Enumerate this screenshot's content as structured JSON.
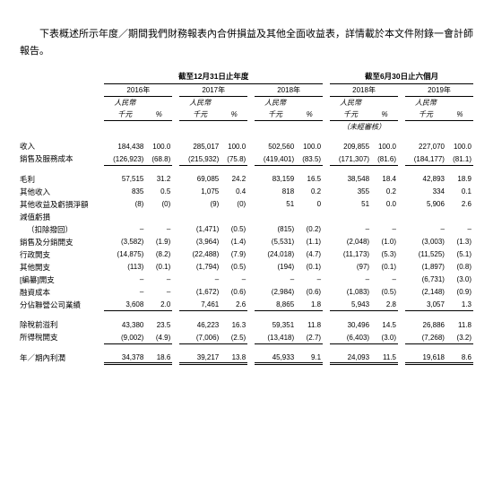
{
  "intro": "下表概述所示年度／期間我們財務報表內合併損益及其他全面收益表，詳情載於本文件附錄一會計師報告。",
  "group1": "截至12月31日止年度",
  "group2": "截至6月30日止六個月",
  "years": [
    "2016年",
    "2017年",
    "2018年",
    "2018年",
    "2019年"
  ],
  "unit_rmb": "人民幣",
  "unit_k": "千元",
  "pct": "%",
  "unaudited": "（未經審核）",
  "labels": {
    "revenue": "收入",
    "cogs": "銷售及服務成本",
    "gross": "毛利",
    "other_income": "其他收入",
    "other_gain": "其他收益及虧損淨額",
    "impair": "減值虧損",
    "impair2": "（扣除撥回）",
    "selling": "銷售及分銷開支",
    "admin": "行政開支",
    "other_exp": "其他開支",
    "redact_exp": "[編纂]開支",
    "finance": "融資成本",
    "assoc": "分佔聯營公司業績",
    "pbt": "除稅前溢利",
    "tax": "所得稅開支",
    "net": "年／期內利潤"
  },
  "rows": {
    "revenue": [
      "184,438",
      "100.0",
      "285,017",
      "100.0",
      "502,560",
      "100.0",
      "209,855",
      "100.0",
      "227,070",
      "100.0"
    ],
    "cogs": [
      "(126,923)",
      "(68.8)",
      "(215,932)",
      "(75.8)",
      "(419,401)",
      "(83.5)",
      "(171,307)",
      "(81.6)",
      "(184,177)",
      "(81.1)"
    ],
    "gross": [
      "57,515",
      "31.2",
      "69,085",
      "24.2",
      "83,159",
      "16.5",
      "38,548",
      "18.4",
      "42,893",
      "18.9"
    ],
    "other_income": [
      "835",
      "0.5",
      "1,075",
      "0.4",
      "818",
      "0.2",
      "355",
      "0.2",
      "334",
      "0.1"
    ],
    "other_gain": [
      "(8)",
      "(0)",
      "(9)",
      "(0)",
      "51",
      "0",
      "51",
      "0.0",
      "5,906",
      "2.6"
    ],
    "impair": [
      "–",
      "–",
      "(1,471)",
      "(0.5)",
      "(815)",
      "(0.2)",
      "–",
      "–",
      "–",
      "–"
    ],
    "selling": [
      "(3,582)",
      "(1.9)",
      "(3,964)",
      "(1.4)",
      "(5,531)",
      "(1.1)",
      "(2,048)",
      "(1.0)",
      "(3,003)",
      "(1.3)"
    ],
    "admin": [
      "(14,875)",
      "(8.2)",
      "(22,488)",
      "(7.9)",
      "(24,018)",
      "(4.7)",
      "(11,173)",
      "(5.3)",
      "(11,525)",
      "(5.1)"
    ],
    "other_exp": [
      "(113)",
      "(0.1)",
      "(1,794)",
      "(0.5)",
      "(194)",
      "(0.1)",
      "(97)",
      "(0.1)",
      "(1,897)",
      "(0.8)"
    ],
    "redact_exp": [
      "–",
      "–",
      "–",
      "–",
      "–",
      "–",
      "–",
      "–",
      "(6,731)",
      "(3.0)"
    ],
    "finance": [
      "–",
      "–",
      "(1,672)",
      "(0.6)",
      "(2,984)",
      "(0.6)",
      "(1,083)",
      "(0.5)",
      "(2,148)",
      "(0.9)"
    ],
    "assoc": [
      "3,608",
      "2.0",
      "7,461",
      "2.6",
      "8,865",
      "1.8",
      "5,943",
      "2.8",
      "3,057",
      "1.3"
    ],
    "pbt": [
      "43,380",
      "23.5",
      "46,223",
      "16.3",
      "59,351",
      "11.8",
      "30,496",
      "14.5",
      "26,886",
      "11.8"
    ],
    "tax": [
      "(9,002)",
      "(4.9)",
      "(7,006)",
      "(2.5)",
      "(13,418)",
      "(2.7)",
      "(6,403)",
      "(3.0)",
      "(7,268)",
      "(3.2)"
    ],
    "net": [
      "34,378",
      "18.6",
      "39,217",
      "13.8",
      "45,933",
      "9.1",
      "24,093",
      "11.5",
      "19,618",
      "8.6"
    ]
  }
}
